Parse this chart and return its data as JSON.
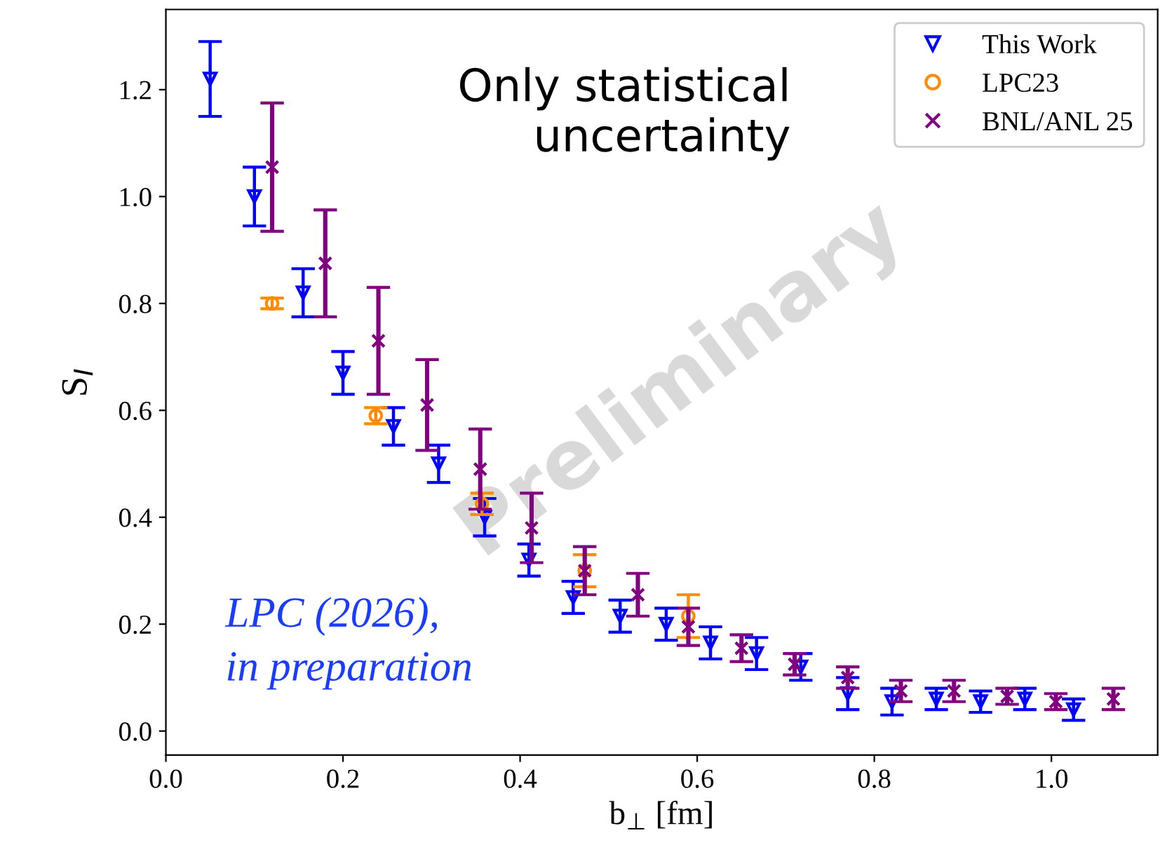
{
  "chart_data": {
    "type": "scatter",
    "xlabel": "b$_{⊥}$ [fm]",
    "ylabel": "S$_{I}$",
    "xlim": [
      0,
      1.12
    ],
    "ylim": [
      -0.045,
      1.35
    ],
    "xticks": [
      {
        "value": 0,
        "label": "0.0"
      },
      0.2,
      0.4,
      0.6,
      0.8,
      {
        "value": 1,
        "label": "1.0"
      }
    ],
    "yticks": [
      {
        "value": 0,
        "label": "0.0"
      },
      0.2,
      0.4,
      0.6,
      0.8,
      {
        "value": 1,
        "label": "1.0"
      },
      1.2
    ],
    "grid": false,
    "legend": "top right",
    "annotations": [
      "Only statistical\nuncertainty",
      "LPC (2026),\nin preparation",
      "Preliminary"
    ],
    "series": [
      {
        "name": "This Work",
        "color": "#0000ff",
        "marker": "triangle",
        "x": [
          0.05,
          0.1,
          0.155,
          0.2,
          0.257,
          0.308,
          0.36,
          0.41,
          0.46,
          0.513,
          0.565,
          0.615,
          0.667,
          0.717,
          0.77,
          0.82,
          0.87,
          0.92,
          0.97,
          1.025
        ],
        "values": [
          1.22,
          1.0,
          0.82,
          0.67,
          0.57,
          0.5,
          0.4,
          0.32,
          0.25,
          0.215,
          0.2,
          0.165,
          0.145,
          0.12,
          0.07,
          0.055,
          0.06,
          0.055,
          0.06,
          0.04
        ],
        "errors": [
          0.07,
          0.055,
          0.045,
          0.04,
          0.035,
          0.035,
          0.035,
          0.03,
          0.03,
          0.03,
          0.03,
          0.03,
          0.03,
          0.025,
          0.03,
          0.025,
          0.02,
          0.02,
          0.02,
          0.02
        ]
      },
      {
        "name": "LPC23",
        "color": "#ff8c00",
        "marker": "circle",
        "x": [
          0.12,
          0.237,
          0.357,
          0.473,
          0.59
        ],
        "values": [
          0.8,
          0.59,
          0.425,
          0.3,
          0.215
        ],
        "errors": [
          0.01,
          0.015,
          0.02,
          0.03,
          0.04
        ]
      },
      {
        "name": "BNL/ANL 25",
        "color": "#800080",
        "marker": "cross",
        "x": [
          0.12,
          0.18,
          0.24,
          0.295,
          0.355,
          0.413,
          0.473,
          0.533,
          0.59,
          0.65,
          0.71,
          0.77,
          0.83,
          0.89,
          0.95,
          1.005,
          1.07
        ],
        "values": [
          1.055,
          0.875,
          0.73,
          0.61,
          0.49,
          0.38,
          0.3,
          0.255,
          0.195,
          0.155,
          0.125,
          0.1,
          0.075,
          0.075,
          0.065,
          0.055,
          0.06
        ],
        "errors": [
          0.12,
          0.1,
          0.1,
          0.085,
          0.075,
          0.065,
          0.045,
          0.04,
          0.035,
          0.025,
          0.02,
          0.02,
          0.02,
          0.02,
          0.015,
          0.015,
          0.02
        ]
      }
    ]
  }
}
